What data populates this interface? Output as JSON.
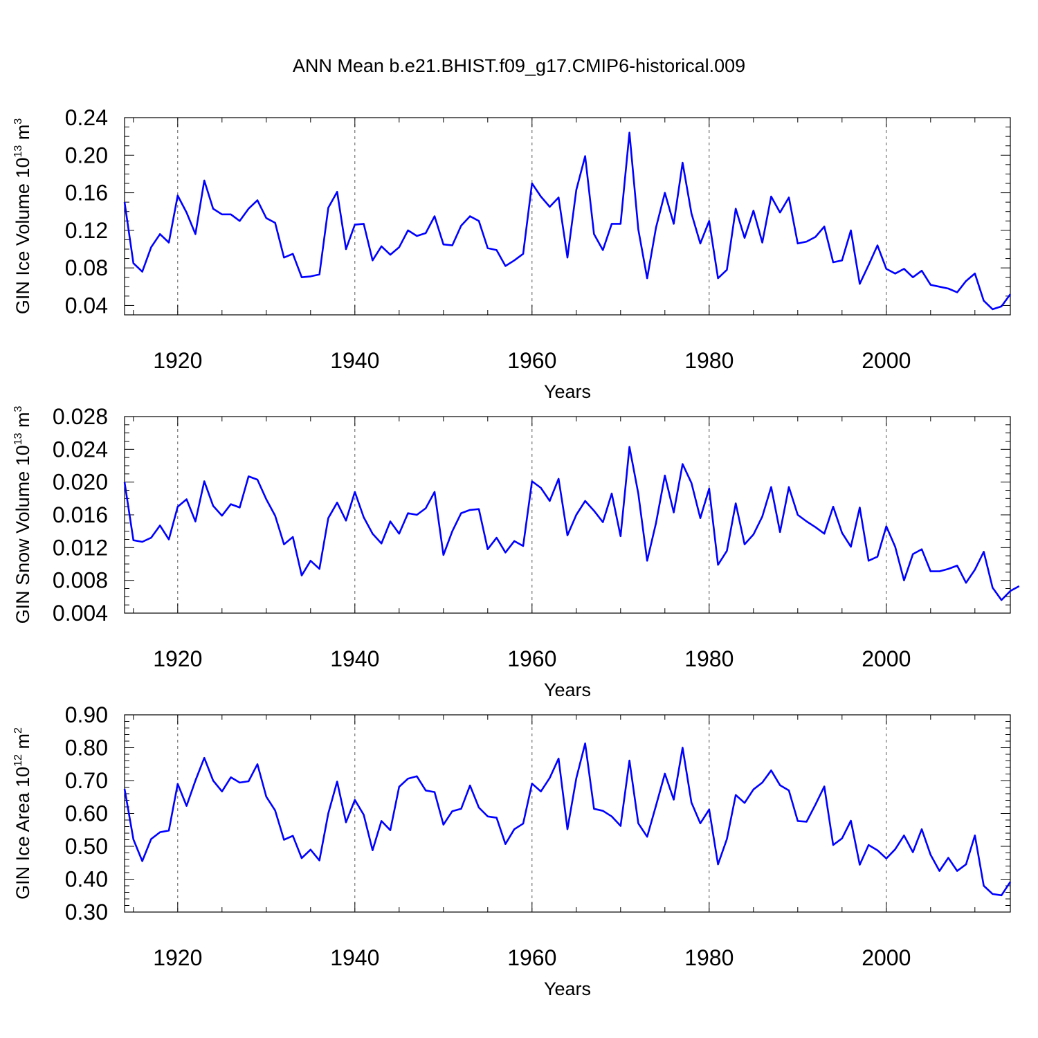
{
  "title": "ANN Mean b.e21.BHIST.f09_g17.CMIP6-historical.009",
  "line_color": "#0000ff",
  "chart_data": [
    {
      "type": "line",
      "id": "ice-volume",
      "ylabel": {
        "main": "GIN Ice Volume 10",
        "exp": "13",
        "unit": " m",
        "unit_exp": "3"
      },
      "xlabel": "Years",
      "xlim": [
        1914,
        2014
      ],
      "ylim": [
        0.03,
        0.24
      ],
      "yticks": [
        0.04,
        0.08,
        0.12,
        0.16,
        0.2,
        0.24
      ],
      "ytick_labels": [
        "0.04",
        "0.08",
        "0.12",
        "0.16",
        "0.20",
        "0.24"
      ],
      "yminor_step": 0.01,
      "xticks": [
        1920,
        1940,
        1960,
        1980,
        2000
      ],
      "xtick_labels": [
        "1920",
        "1940",
        "1960",
        "1980",
        "2000"
      ],
      "grid_x": true,
      "x_start": 1914,
      "values": [
        0.15,
        0.085,
        0.076,
        0.102,
        0.116,
        0.107,
        0.157,
        0.139,
        0.116,
        0.173,
        0.143,
        0.137,
        0.137,
        0.13,
        0.143,
        0.152,
        0.133,
        0.128,
        0.091,
        0.095,
        0.07,
        0.071,
        0.073,
        0.144,
        0.161,
        0.1,
        0.126,
        0.127,
        0.088,
        0.103,
        0.094,
        0.102,
        0.12,
        0.114,
        0.117,
        0.135,
        0.105,
        0.104,
        0.125,
        0.135,
        0.13,
        0.101,
        0.099,
        0.082,
        0.088,
        0.095,
        0.17,
        0.156,
        0.145,
        0.155,
        0.091,
        0.163,
        0.199,
        0.116,
        0.099,
        0.127,
        0.127,
        0.224,
        0.121,
        0.069,
        0.123,
        0.16,
        0.127,
        0.192,
        0.138,
        0.106,
        0.13,
        0.069,
        0.078,
        0.143,
        0.112,
        0.141,
        0.107,
        0.156,
        0.139,
        0.155,
        0.106,
        0.108,
        0.113,
        0.124,
        0.086,
        0.088,
        0.12,
        0.063,
        0.083,
        0.104,
        0.079,
        0.074,
        0.079,
        0.07,
        0.077,
        0.062,
        0.06,
        0.058,
        0.054,
        0.066,
        0.074,
        0.045,
        0.036,
        0.039,
        0.052
      ]
    },
    {
      "type": "line",
      "id": "snow-volume",
      "ylabel": {
        "main": "GIN Snow Volume 10",
        "exp": "13",
        "unit": " m",
        "unit_exp": "3"
      },
      "xlabel": "Years",
      "xlim": [
        1914,
        2014
      ],
      "ylim": [
        0.004,
        0.028
      ],
      "yticks": [
        0.004,
        0.008,
        0.012,
        0.016,
        0.02,
        0.024,
        0.028
      ],
      "ytick_labels": [
        "0.004",
        "0.008",
        "0.012",
        "0.016",
        "0.020",
        "0.024",
        "0.028"
      ],
      "yminor_step": 0.001,
      "xticks": [
        1920,
        1940,
        1960,
        1980,
        2000
      ],
      "xtick_labels": [
        "1920",
        "1940",
        "1960",
        "1980",
        "2000"
      ],
      "grid_x": true,
      "x_start": 1914,
      "values": [
        0.02,
        0.0129,
        0.0127,
        0.0132,
        0.0147,
        0.013,
        0.017,
        0.0179,
        0.0152,
        0.0201,
        0.0171,
        0.0159,
        0.0173,
        0.0169,
        0.0207,
        0.0203,
        0.0179,
        0.0159,
        0.0124,
        0.0133,
        0.0086,
        0.0104,
        0.0094,
        0.0156,
        0.0175,
        0.0153,
        0.0188,
        0.0157,
        0.0137,
        0.0125,
        0.0152,
        0.0137,
        0.0162,
        0.016,
        0.0168,
        0.0188,
        0.0111,
        0.014,
        0.0162,
        0.0166,
        0.0167,
        0.0118,
        0.0132,
        0.0114,
        0.0128,
        0.0122,
        0.0201,
        0.0193,
        0.0177,
        0.0204,
        0.0135,
        0.016,
        0.0177,
        0.0165,
        0.0151,
        0.0186,
        0.0134,
        0.0243,
        0.0186,
        0.0104,
        0.015,
        0.0208,
        0.0163,
        0.0222,
        0.0199,
        0.0156,
        0.0192,
        0.0099,
        0.0116,
        0.0174,
        0.0124,
        0.0136,
        0.0158,
        0.0194,
        0.0139,
        0.0194,
        0.016,
        0.0152,
        0.0145,
        0.0137,
        0.017,
        0.0138,
        0.0121,
        0.0169,
        0.0104,
        0.0109,
        0.0146,
        0.0121,
        0.008,
        0.0112,
        0.0118,
        0.0091,
        0.0091,
        0.0094,
        0.0098,
        0.0077,
        0.0093,
        0.0115,
        0.0071,
        0.0056,
        0.0067,
        0.0073
      ]
    },
    {
      "type": "line",
      "id": "ice-area",
      "ylabel": {
        "main": "GIN Ice Area 10",
        "exp": "12",
        "unit": " m",
        "unit_exp": "2"
      },
      "xlabel": "Years",
      "xlim": [
        1914,
        2014
      ],
      "ylim": [
        0.3,
        0.9
      ],
      "yticks": [
        0.3,
        0.4,
        0.5,
        0.6,
        0.7,
        0.8,
        0.9
      ],
      "ytick_labels": [
        "0.30",
        "0.40",
        "0.50",
        "0.60",
        "0.70",
        "0.80",
        "0.90"
      ],
      "yminor_step": 0.02,
      "xticks": [
        1920,
        1940,
        1960,
        1980,
        2000
      ],
      "xtick_labels": [
        "1920",
        "1940",
        "1960",
        "1980",
        "2000"
      ],
      "grid_x": true,
      "x_start": 1914,
      "values": [
        0.675,
        0.521,
        0.455,
        0.522,
        0.543,
        0.548,
        0.69,
        0.623,
        0.7,
        0.769,
        0.7,
        0.667,
        0.71,
        0.694,
        0.698,
        0.75,
        0.651,
        0.609,
        0.52,
        0.532,
        0.464,
        0.49,
        0.457,
        0.6,
        0.697,
        0.573,
        0.641,
        0.596,
        0.488,
        0.577,
        0.549,
        0.681,
        0.706,
        0.713,
        0.67,
        0.665,
        0.566,
        0.607,
        0.614,
        0.685,
        0.618,
        0.591,
        0.587,
        0.507,
        0.552,
        0.569,
        0.691,
        0.667,
        0.708,
        0.767,
        0.552,
        0.707,
        0.813,
        0.614,
        0.608,
        0.591,
        0.562,
        0.761,
        0.57,
        0.529,
        0.624,
        0.721,
        0.642,
        0.8,
        0.633,
        0.57,
        0.612,
        0.445,
        0.522,
        0.656,
        0.632,
        0.673,
        0.694,
        0.731,
        0.686,
        0.67,
        0.577,
        0.575,
        0.627,
        0.682,
        0.504,
        0.524,
        0.578,
        0.444,
        0.504,
        0.488,
        0.463,
        0.491,
        0.533,
        0.482,
        0.552,
        0.474,
        0.425,
        0.465,
        0.425,
        0.445,
        0.533,
        0.38,
        0.355,
        0.351,
        0.392
      ]
    }
  ]
}
